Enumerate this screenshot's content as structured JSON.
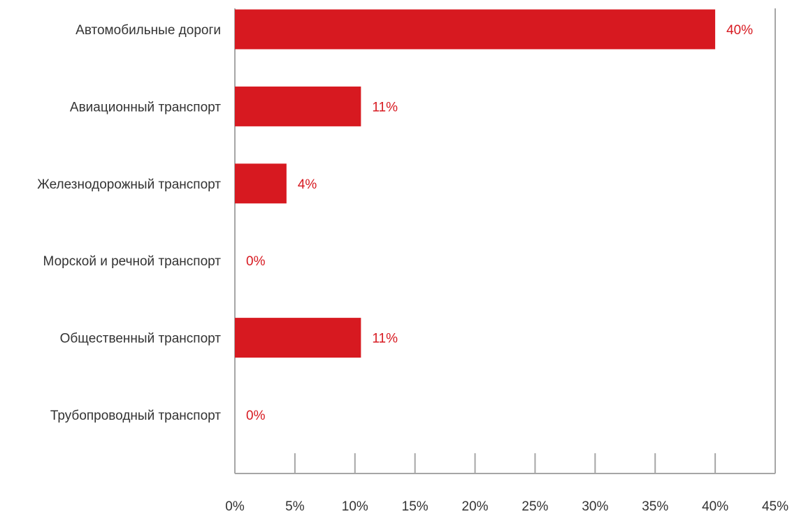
{
  "chart_data": {
    "type": "bar",
    "orientation": "horizontal",
    "categories": [
      "Автомобильные дороги",
      "Авиационный транспорт",
      "Железнодорожный транспорт",
      "Морской и речной транспорт",
      "Общественный транспорт",
      "Трубопроводный транспорт"
    ],
    "values": [
      40,
      10.5,
      4.3,
      0,
      10.5,
      0
    ],
    "data_labels": [
      "40%",
      "11%",
      "4%",
      "0%",
      "11%",
      "0%"
    ],
    "xlim": [
      0,
      45
    ],
    "x_ticks": [
      0,
      5,
      10,
      15,
      20,
      25,
      30,
      35,
      40,
      45
    ],
    "x_tick_labels": [
      "0%",
      "5%",
      "10%",
      "15%",
      "20%",
      "25%",
      "30%",
      "35%",
      "40%",
      "45%"
    ],
    "grid": false,
    "legend": "none",
    "colors": {
      "bar": "#D71920",
      "data_label": "#D71920",
      "axis": "#A6A6A6",
      "text": "#333333"
    }
  }
}
